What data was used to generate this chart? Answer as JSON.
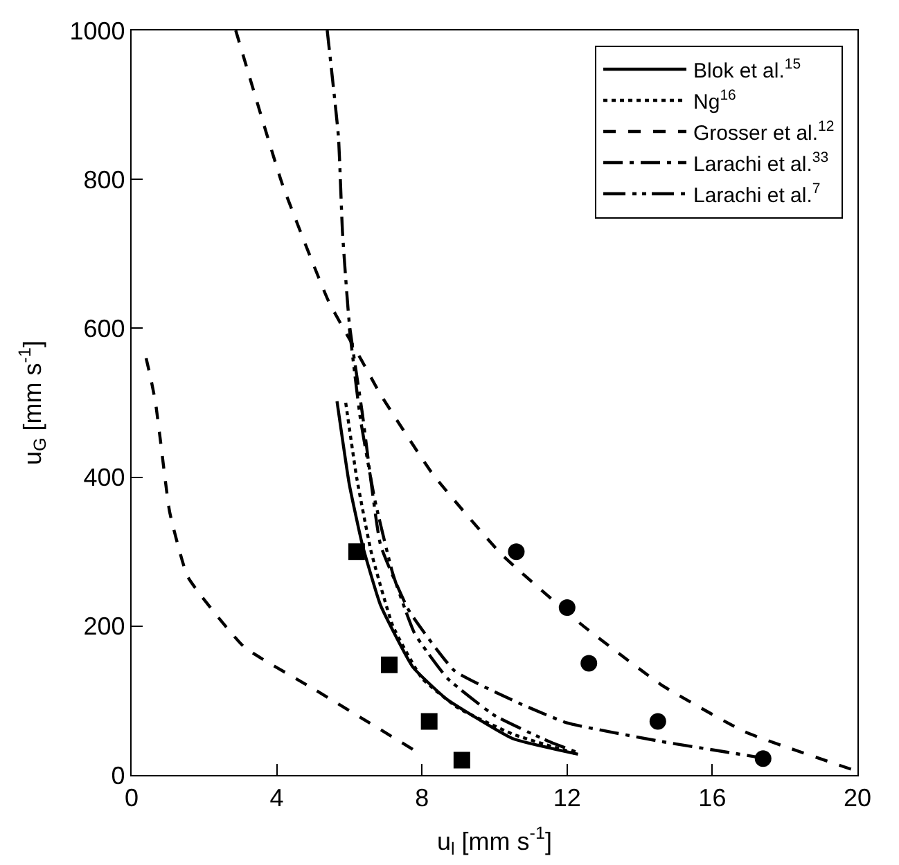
{
  "chart_data": {
    "type": "line",
    "xlabel": "u$_{l}$ [mm s$^{-1}$]",
    "ylabel": "u$_{G}$ [mm s$^{-1}$]",
    "xlim": [
      0,
      20
    ],
    "xticks": [
      0,
      4,
      8,
      12,
      16,
      20
    ],
    "ylim": [
      0,
      1000
    ],
    "yticks": [
      0,
      200,
      400,
      600,
      800,
      1000
    ],
    "legend": "top right",
    "marker": "none",
    "series": [
      {
        "name": "Blok et al.$^{15}$",
        "color": "#000000",
        "line_style": "solid",
        "x": [
          5.66,
          6.0,
          6.36,
          6.86,
          7.75,
          8.68,
          10.5,
          12.3
        ],
        "values": [
          502,
          390,
          309,
          228,
          145,
          102,
          49,
          28
        ]
      },
      {
        "name": "Ng$^{16}$",
        "color": "#000000",
        "line_style": "dotted",
        "x": [
          5.9,
          6.2,
          6.6,
          7.2,
          8.0,
          9.0,
          10.5,
          12.3
        ],
        "values": [
          500,
          400,
          300,
          200,
          130,
          90,
          55,
          28
        ]
      },
      {
        "name": "Grosser et al.$^{12}$",
        "color": "#000000",
        "line_style": "dashed",
        "x": [
          0.4,
          0.54,
          0.66,
          0.78,
          1.05,
          1.55,
          3.1,
          5.04,
          7.9
        ],
        "values": [
          560,
          530,
          500,
          455,
          353,
          266,
          172,
          115,
          30
        ]
      },
      {
        "name": "Larachi et al.$^{33}$",
        "color": "#000000",
        "line_style": "dashdot",
        "x": [
          5.39,
          5.7,
          5.81,
          6.0,
          6.36,
          6.86,
          7.64,
          8.9,
          10.7,
          12.0,
          14.6,
          16.5,
          17.5
        ],
        "values": [
          1000,
          857,
          730,
          606,
          485,
          309,
          221,
          140,
          96,
          70,
          45,
          30,
          22
        ]
      },
      {
        "name": "Larachi et al.$^{7}$",
        "color": "#000000",
        "line_style": "dashdotdot",
        "x": [
          6.0,
          6.3,
          6.7,
          7.2,
          7.8,
          8.7,
          10.0,
          11.5,
          12.3
        ],
        "values": [
          600,
          480,
          370,
          270,
          190,
          130,
          80,
          45,
          30
        ]
      },
      {
        "color": "#000000",
        "line_style": "dashed",
        "x": [
          2.87,
          4.15,
          5.43,
          6.36,
          6.86,
          8.3,
          10.2,
          12.4,
          14.6,
          16.9,
          20
        ],
        "values": [
          1000,
          794,
          636,
          555,
          511,
          404,
          296,
          202,
          121,
          58,
          5
        ]
      },
      {
        "type": "scatter",
        "marker": "square",
        "color": "#000000",
        "x": [
          6.2,
          7.1,
          8.2,
          9.1
        ],
        "values": [
          300,
          148,
          72,
          20
        ]
      },
      {
        "type": "scatter",
        "marker": "circle",
        "color": "#000000",
        "x": [
          10.6,
          12.0,
          12.6,
          14.5,
          17.4
        ],
        "values": [
          300,
          225,
          150,
          72,
          22
        ]
      }
    ]
  }
}
